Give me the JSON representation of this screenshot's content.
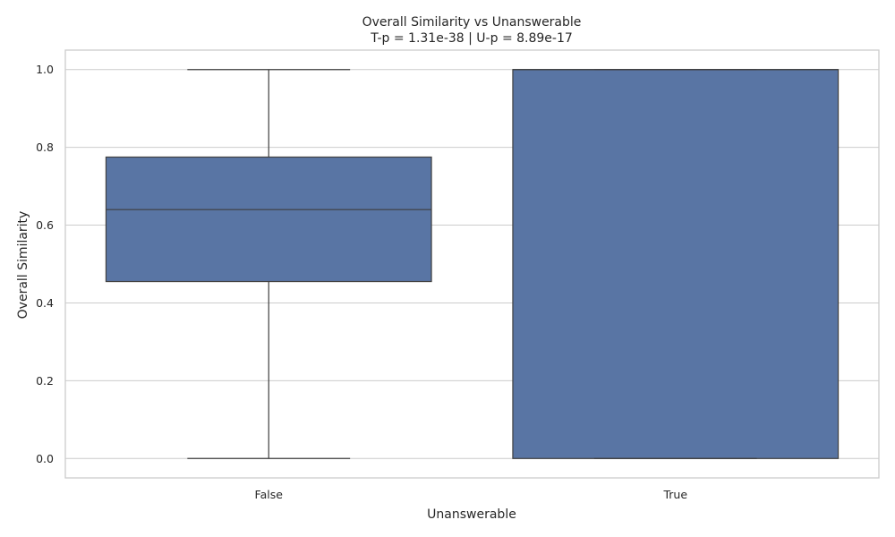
{
  "chart_data": {
    "type": "box",
    "title": "Overall Similarity vs Unanswerable",
    "subtitle": "T-p = 1.31e-38 | U-p = 8.89e-17",
    "xlabel": "Unanswerable",
    "ylabel": "Overall Similarity",
    "categories": [
      "False",
      "True"
    ],
    "boxes": [
      {
        "category": "False",
        "whisker_low": 0.0,
        "q1": 0.455,
        "median": 0.64,
        "q3": 0.775,
        "whisker_high": 1.0
      },
      {
        "category": "True",
        "whisker_low": 0.0,
        "q1": 0.0,
        "median": 1.0,
        "q3": 1.0,
        "whisker_high": 1.0
      }
    ],
    "ylim": [
      -0.05,
      1.05
    ],
    "yticks": [
      0.0,
      0.2,
      0.4,
      0.6,
      0.8,
      1.0
    ],
    "ytick_labels": [
      "0.0",
      "0.2",
      "0.4",
      "0.6",
      "0.8",
      "1.0"
    ],
    "grid": true,
    "colors": {
      "box_fill": "#5975a4",
      "box_edge": "#3f3f3f",
      "grid": "#cccccc",
      "frame": "#cccccc"
    }
  }
}
